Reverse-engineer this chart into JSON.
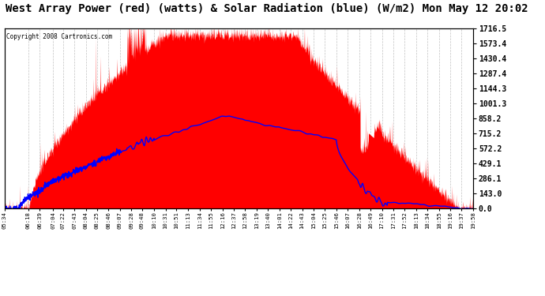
{
  "title": "West Array Power (red) (watts) & Solar Radiation (blue) (W/m2) Mon May 12 20:02",
  "copyright": "Copyright 2008 Cartronics.com",
  "ylabel_right_ticks": [
    0.0,
    143.0,
    286.1,
    429.1,
    572.2,
    715.2,
    858.2,
    1001.3,
    1144.3,
    1287.4,
    1430.4,
    1573.4,
    1716.5
  ],
  "ymax": 1716.5,
  "ymin": 0.0,
  "background_color": "#ffffff",
  "plot_bg_color": "#ffffff",
  "grid_color": "#bbbbbb",
  "fill_color": "#ff0000",
  "line_color": "#0000ff",
  "title_fontsize": 10,
  "x_labels": [
    "05:34",
    "06:18",
    "06:39",
    "07:04",
    "07:22",
    "07:43",
    "08:04",
    "08:25",
    "08:46",
    "09:07",
    "09:28",
    "09:48",
    "10:10",
    "10:31",
    "10:51",
    "11:13",
    "11:34",
    "11:55",
    "12:16",
    "12:37",
    "12:58",
    "13:19",
    "13:40",
    "14:01",
    "14:22",
    "14:43",
    "15:04",
    "15:25",
    "15:46",
    "16:07",
    "16:28",
    "16:49",
    "17:10",
    "17:31",
    "17:52",
    "18:13",
    "18:34",
    "18:55",
    "19:16",
    "19:37",
    "19:58"
  ]
}
